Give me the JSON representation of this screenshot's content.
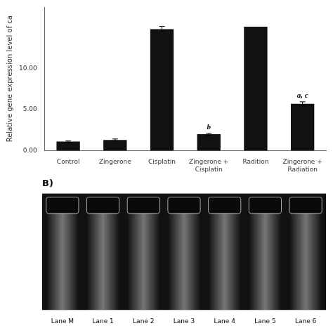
{
  "chart_data": [
    {
      "type": "bar",
      "categories": [
        "Control",
        "Zingerone",
        "Cisplatin",
        "Zingerone +\nCisplatin",
        "Radition",
        "Zingerone +\nRadiation"
      ],
      "values": [
        1.1,
        1.3,
        14.8,
        2.0,
        15.1,
        5.7
      ],
      "errors": [
        0.08,
        0.12,
        0.35,
        0.12,
        0.0,
        0.25
      ],
      "color": "#111111",
      "y_label": "Relative gene expression level of ca",
      "ylim": [
        0,
        17.5
      ],
      "yticks": [
        {
          "value": 0.0,
          "label": "0.00"
        },
        {
          "value": 5.0,
          "label": "5.00"
        },
        {
          "value": 10.0,
          "label": "10.00"
        }
      ],
      "grid": false,
      "annotations": [
        {
          "text": "b",
          "x": 3,
          "y": 2.25
        },
        {
          "text": "a, c",
          "x": 5,
          "y": 6.1
        }
      ]
    },
    {
      "type": "gel",
      "title": "B)",
      "categories": [
        "Lane M",
        "Lane 1",
        "Lane 2",
        "Lane 3",
        "Lane 4",
        "Lane 5",
        "Lane 6"
      ]
    }
  ]
}
